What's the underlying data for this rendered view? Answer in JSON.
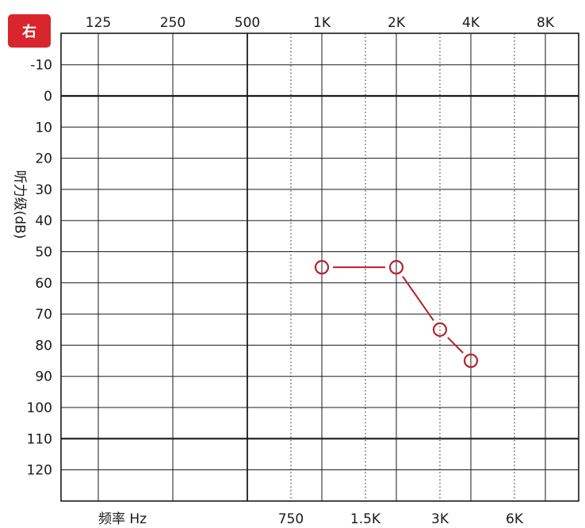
{
  "ear_label": "右",
  "colors": {
    "badge": "#d9262e",
    "series": "#b5232b",
    "grid": "#1a1a1a"
  },
  "chart_data": {
    "type": "line",
    "title": "",
    "xlabel": "频率 Hz",
    "ylabel": "听力级(dB)",
    "x_scale": "log",
    "y_inverted": true,
    "ylim": [
      -20,
      130
    ],
    "x_major_ticks": [
      {
        "value": 125,
        "label": "125"
      },
      {
        "value": 250,
        "label": "250"
      },
      {
        "value": 500,
        "label": "500"
      },
      {
        "value": 1000,
        "label": "1K"
      },
      {
        "value": 2000,
        "label": "2K"
      },
      {
        "value": 4000,
        "label": "4K"
      },
      {
        "value": 8000,
        "label": "8K"
      }
    ],
    "x_minor_ticks": [
      {
        "value": 750,
        "label": "750"
      },
      {
        "value": 1500,
        "label": "1.5K"
      },
      {
        "value": 3000,
        "label": "3K"
      },
      {
        "value": 6000,
        "label": "6K"
      }
    ],
    "y_ticks": [
      -10,
      0,
      10,
      20,
      30,
      40,
      50,
      60,
      70,
      80,
      90,
      100,
      110,
      120
    ],
    "y_bold_lines": [
      0,
      110
    ],
    "grid": true,
    "series": [
      {
        "marker": "circle",
        "x": [
          1000,
          2000,
          3000,
          4000
        ],
        "y": [
          55,
          55,
          75,
          85
        ]
      }
    ]
  }
}
